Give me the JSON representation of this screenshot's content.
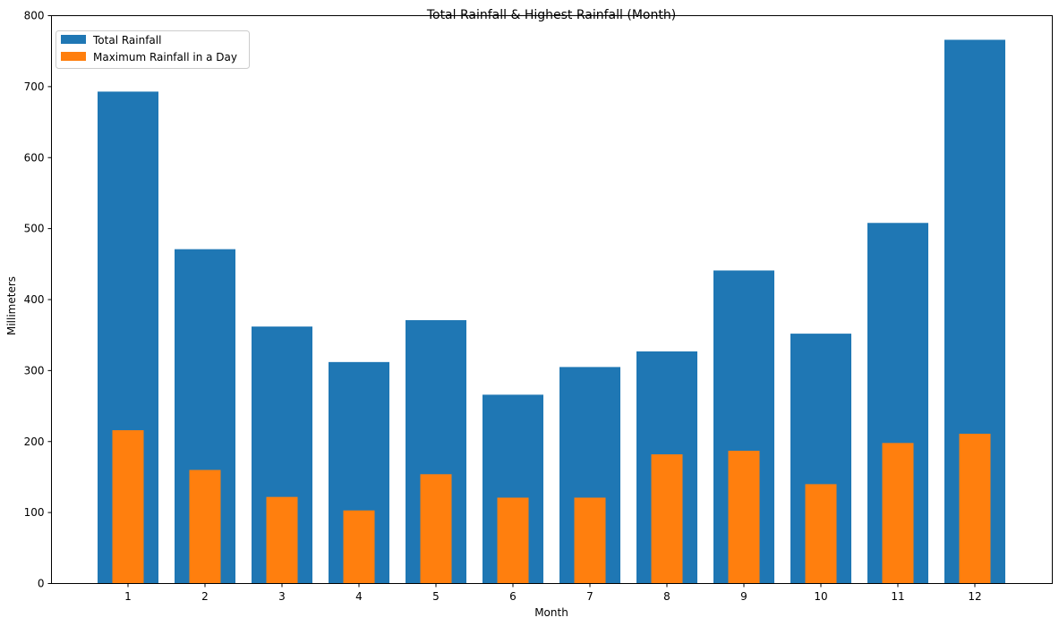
{
  "chart_data": {
    "type": "bar",
    "title": "Total Rainfall & Highest Rainfall (Month)",
    "xlabel": "Month",
    "ylabel": "Millimeters",
    "categories": [
      "1",
      "2",
      "3",
      "4",
      "5",
      "6",
      "7",
      "8",
      "9",
      "10",
      "11",
      "12"
    ],
    "ylim": [
      0,
      800
    ],
    "yticks": [
      "0",
      "100",
      "200",
      "300",
      "400",
      "500",
      "600",
      "700",
      "800"
    ],
    "grid": false,
    "legend_position": "top-left",
    "series": [
      {
        "name": "Total Rainfall",
        "color": "#1f77b4",
        "values": [
          693,
          471,
          362,
          312,
          371,
          266,
          305,
          327,
          441,
          352,
          508,
          766
        ]
      },
      {
        "name": "Maximum Rainfall in a Day",
        "color": "#ff7f0e",
        "values": [
          216,
          160,
          122,
          103,
          154,
          121,
          121,
          182,
          187,
          140,
          198,
          211
        ]
      }
    ]
  }
}
